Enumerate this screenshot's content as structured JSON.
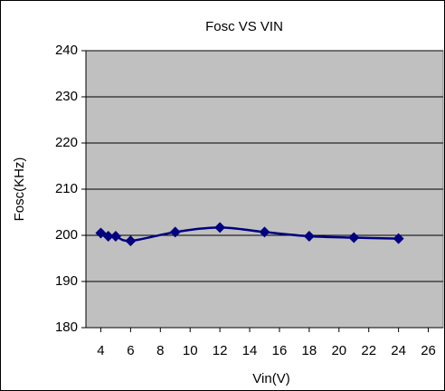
{
  "chart_data": {
    "type": "line",
    "title": "Fosc VS VIN",
    "x_label": "Vin(V)",
    "y_label": "Fosc(KHz)",
    "series": [
      {
        "name": "Fosc",
        "color": "#000080",
        "x": [
          4,
          4.5,
          5,
          6,
          9,
          12,
          15,
          18,
          21,
          24
        ],
        "values": [
          200.5,
          199.8,
          199.8,
          198.8,
          200.7,
          201.7,
          200.7,
          199.8,
          199.5,
          199.3
        ]
      }
    ],
    "xlim": [
      3,
      27
    ],
    "xticks": [
      4,
      6,
      8,
      10,
      12,
      14,
      16,
      18,
      20,
      22,
      24,
      26
    ],
    "ylim": [
      180,
      240
    ],
    "yticks": [
      180,
      190,
      200,
      210,
      220,
      230,
      240
    ],
    "grid": true,
    "plot_background": "#c0c0c0"
  }
}
